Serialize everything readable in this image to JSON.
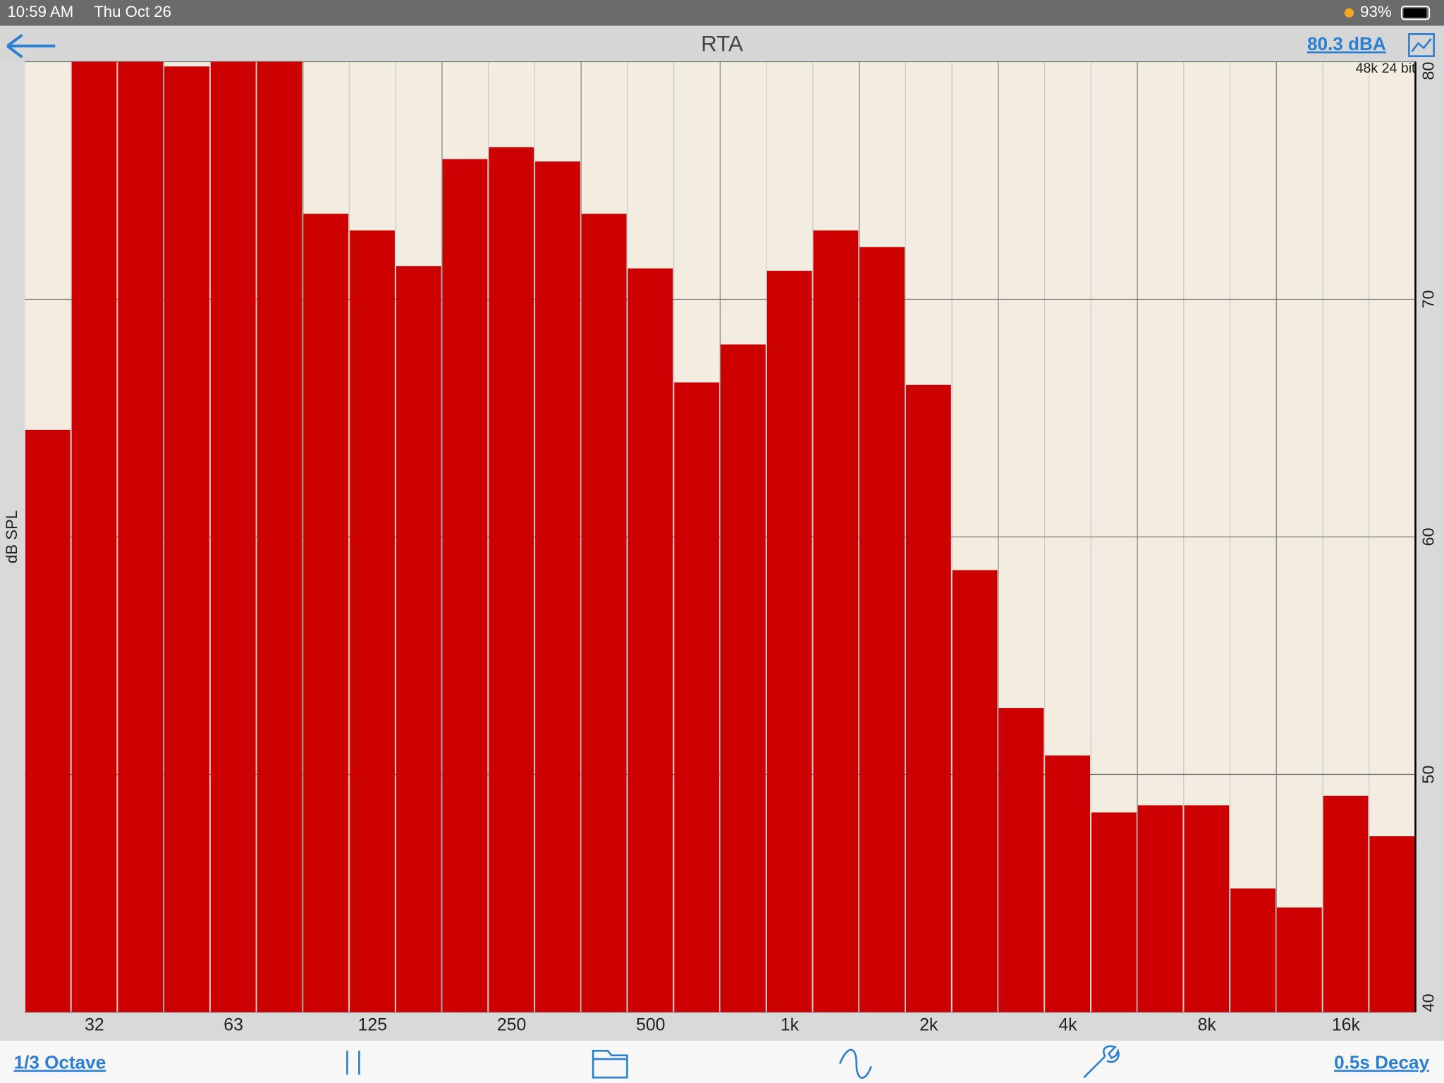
{
  "ui": {
    "time": "10:59 AM",
    "date": "Thu Oct 26",
    "battery": "93%",
    "title": "RTA",
    "level": "80.3 dBA",
    "format": "48k 24 bit",
    "octave_button": "1/3 Octave",
    "decay_button": "0.5s Decay"
  },
  "chart_data": {
    "type": "bar",
    "y_label": "dB SPL",
    "color": "#cc0000",
    "grid": true,
    "categories": [
      null,
      "32",
      null,
      null,
      "63",
      null,
      null,
      "125",
      null,
      null,
      "250",
      null,
      null,
      "500",
      null,
      null,
      "1k",
      null,
      null,
      "2k",
      null,
      null,
      "4k",
      null,
      null,
      "8k",
      null,
      null,
      "16k",
      null
    ],
    "values": [
      64.5,
      80,
      80,
      79.8,
      80,
      80,
      73.6,
      72.9,
      71.4,
      75.9,
      76.4,
      75.8,
      73.6,
      71.3,
      66.5,
      68.1,
      71.2,
      72.9,
      72.2,
      66.4,
      58.6,
      52.8,
      50.8,
      48.4,
      48.7,
      48.7,
      45.2,
      44.4,
      49.1,
      47.4
    ],
    "ylim": [
      40,
      80
    ],
    "yticks": [
      40,
      50,
      60,
      70,
      80
    ]
  }
}
